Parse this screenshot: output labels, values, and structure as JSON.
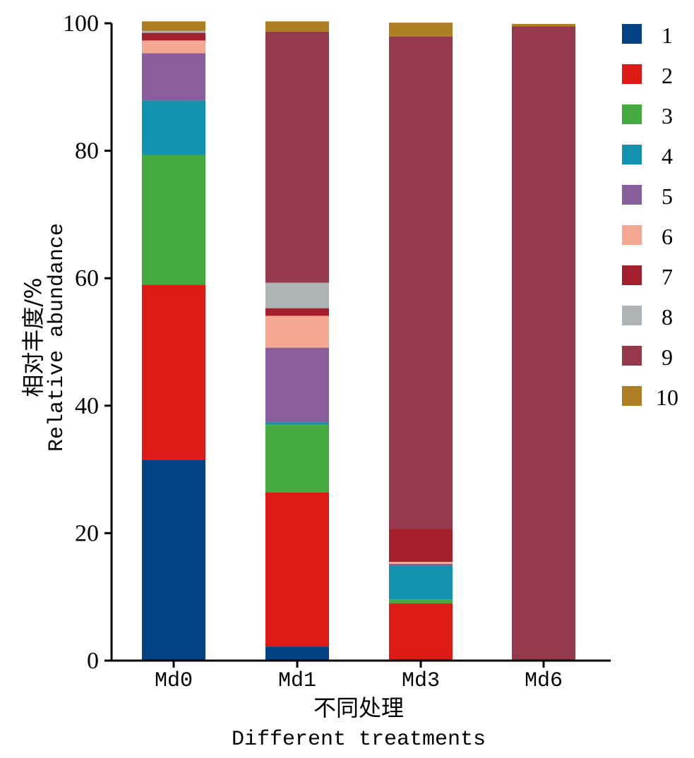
{
  "chart_data": {
    "type": "bar",
    "stacked": true,
    "title": "",
    "ylabel_cn": "相对丰度/%",
    "ylabel_en": "Relative abundance",
    "xlabel_cn": "不同处理",
    "xlabel_en": "Different treatments",
    "ylim": [
      0,
      100
    ],
    "yticks": [
      0,
      20,
      40,
      60,
      80,
      100
    ],
    "categories": [
      "Md0",
      "Md1",
      "Md3",
      "Md6"
    ],
    "legend_position": "right",
    "series": [
      {
        "name": "1",
        "color": "#004385",
        "values": [
          31.5,
          2.2,
          0.0,
          0.0
        ]
      },
      {
        "name": "2",
        "color": "#DE1A16",
        "values": [
          27.5,
          24.2,
          9.0,
          0.0
        ]
      },
      {
        "name": "3",
        "color": "#45AA3F",
        "values": [
          20.3,
          10.7,
          0.6,
          0.0
        ]
      },
      {
        "name": "4",
        "color": "#1392AD",
        "values": [
          8.6,
          0.3,
          5.3,
          0.0
        ]
      },
      {
        "name": "5",
        "color": "#8A5E9C",
        "values": [
          7.4,
          11.7,
          0.3,
          0.0
        ]
      },
      {
        "name": "6",
        "color": "#F4A891",
        "values": [
          2.0,
          5.0,
          0.3,
          0.0
        ]
      },
      {
        "name": "7",
        "color": "#A41F2C",
        "values": [
          1.2,
          1.2,
          5.2,
          0.0
        ]
      },
      {
        "name": "8",
        "color": "#AEB3B6",
        "values": [
          0.3,
          4.0,
          0.0,
          0.0
        ]
      },
      {
        "name": "9",
        "color": "#96384C",
        "values": [
          0.0,
          39.4,
          77.2,
          99.5
        ]
      },
      {
        "name": "10",
        "color": "#AE7E22",
        "values": [
          1.5,
          1.6,
          2.2,
          0.4
        ]
      }
    ]
  }
}
